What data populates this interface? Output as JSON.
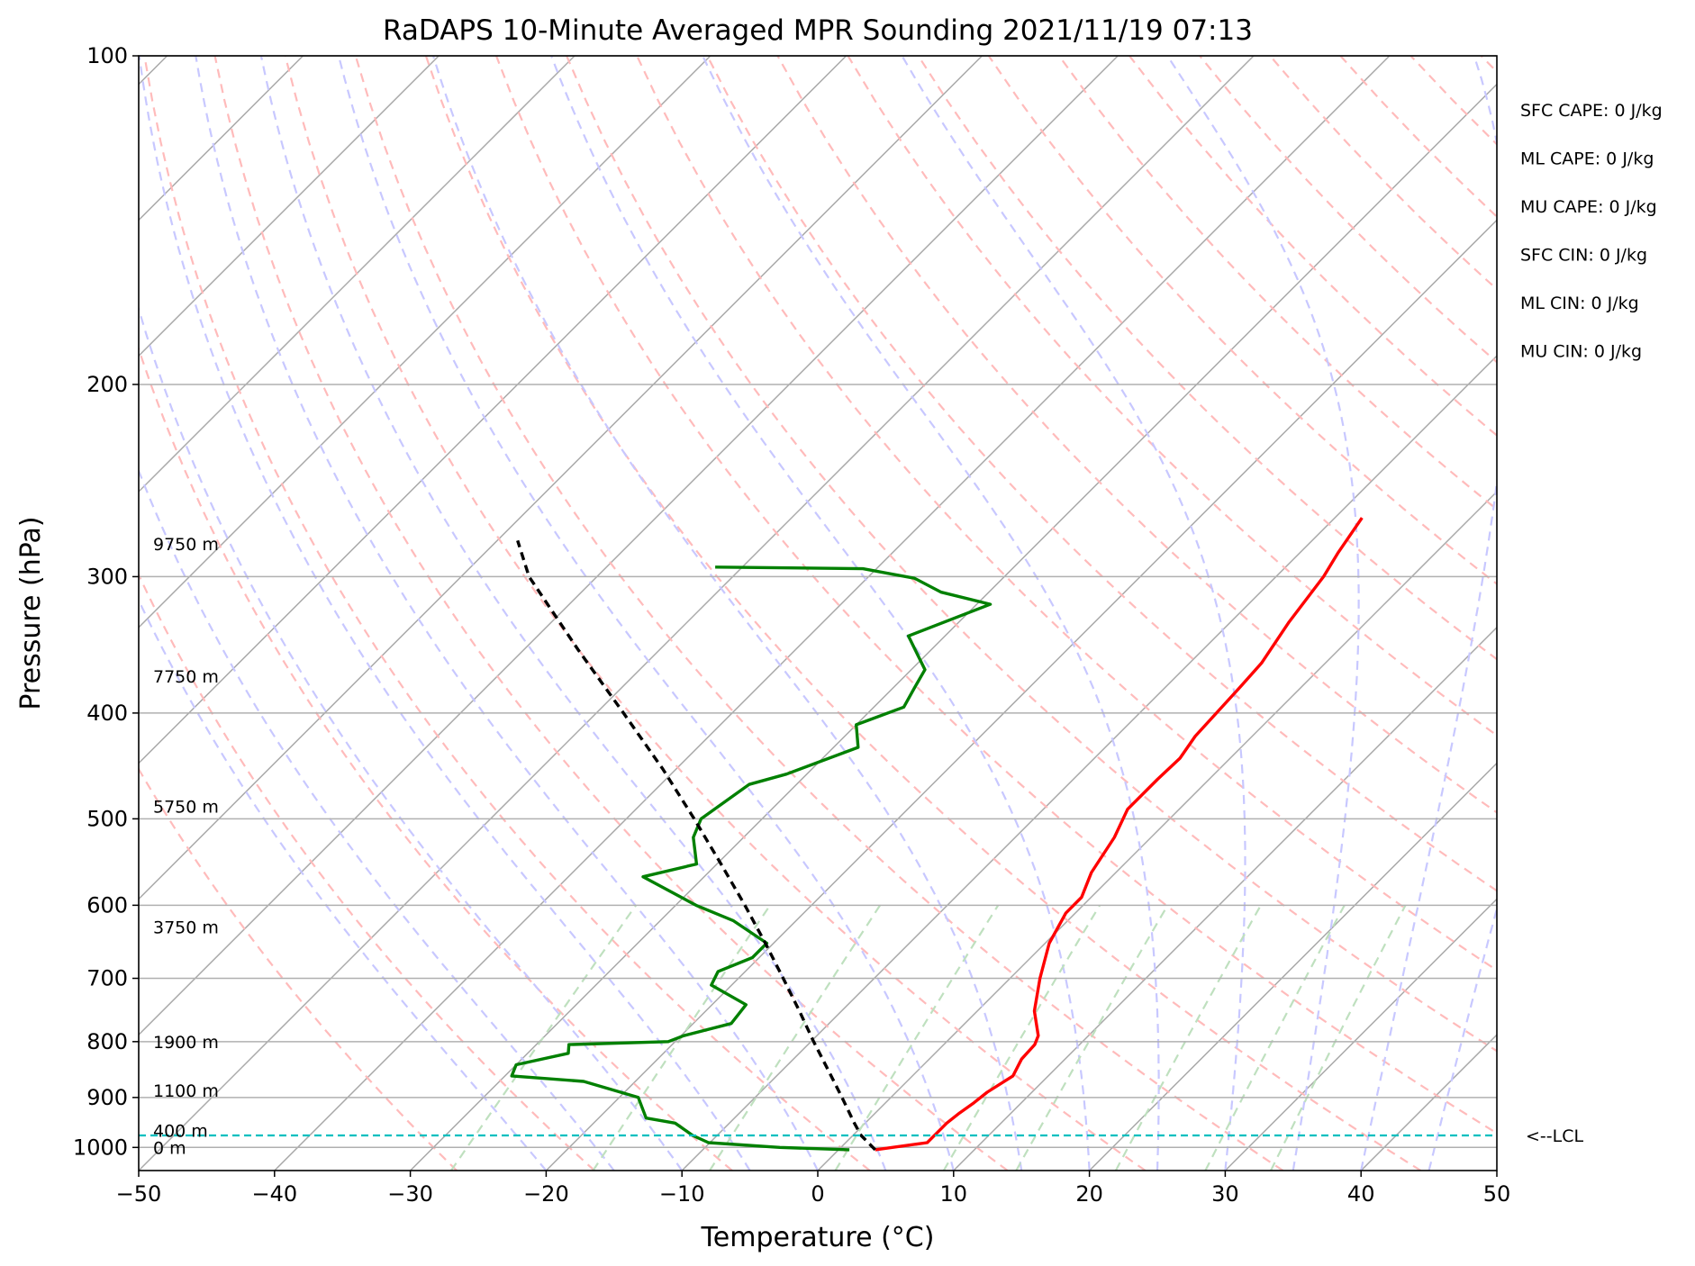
{
  "chart_data": {
    "type": "line",
    "title": "RaDAPS 10-Minute Averaged MPR Sounding 2021/11/19 07:13",
    "xlabel": "Temperature (°C)",
    "ylabel": "Pressure (hPa)",
    "xlim": [
      -50,
      50
    ],
    "ylim": [
      1050,
      100
    ],
    "yscale": "log",
    "skew": true,
    "xticks": [
      -50,
      -40,
      -30,
      -20,
      -10,
      0,
      10,
      20,
      30,
      40,
      50
    ],
    "xtick_labels": [
      "−50",
      "−40",
      "−30",
      "−20",
      "−10",
      "0",
      "10",
      "20",
      "30",
      "40",
      "50"
    ],
    "yticks": [
      100,
      200,
      300,
      400,
      500,
      600,
      700,
      800,
      900,
      1000
    ],
    "ytick_labels": [
      "100",
      "200",
      "300",
      "400",
      "500",
      "600",
      "700",
      "800",
      "900",
      "1000"
    ],
    "grid": true,
    "series": [
      {
        "id": "temperature",
        "color": "#ff0000",
        "style": "solid",
        "points": [
          [
            1005,
            2.7
          ],
          [
            990,
            6.0
          ],
          [
            970,
            6.0
          ],
          [
            950,
            6.0
          ],
          [
            930,
            6.2
          ],
          [
            910,
            6.5
          ],
          [
            890,
            6.7
          ],
          [
            860,
            7.4
          ],
          [
            830,
            6.8
          ],
          [
            805,
            6.7
          ],
          [
            790,
            6.3
          ],
          [
            750,
            4.2
          ],
          [
            700,
            2.2
          ],
          [
            650,
            0.3
          ],
          [
            610,
            -0.7
          ],
          [
            590,
            -0.7
          ],
          [
            560,
            -1.8
          ],
          [
            520,
            -2.7
          ],
          [
            490,
            -3.8
          ],
          [
            460,
            -3.8
          ],
          [
            440,
            -3.7
          ],
          [
            420,
            -4.2
          ],
          [
            380,
            -4.5
          ],
          [
            360,
            -4.7
          ],
          [
            330,
            -5.7
          ],
          [
            300,
            -6.5
          ],
          [
            285,
            -7.2
          ],
          [
            265,
            -8.0
          ]
        ]
      },
      {
        "id": "dewpoint",
        "color": "#008000",
        "style": "solid",
        "points": [
          [
            1005,
            0.8
          ],
          [
            1000,
            -4.5
          ],
          [
            990,
            -10.1
          ],
          [
            975,
            -11.8
          ],
          [
            950,
            -14.0
          ],
          [
            940,
            -16.5
          ],
          [
            900,
            -18.6
          ],
          [
            870,
            -23.8
          ],
          [
            860,
            -29.5
          ],
          [
            840,
            -30.0
          ],
          [
            820,
            -27.0
          ],
          [
            805,
            -27.6
          ],
          [
            800,
            -20.5
          ],
          [
            790,
            -19.8
          ],
          [
            770,
            -17.2
          ],
          [
            740,
            -17.5
          ],
          [
            710,
            -21.5
          ],
          [
            690,
            -22.0
          ],
          [
            670,
            -20.5
          ],
          [
            650,
            -20.5
          ],
          [
            620,
            -24.6
          ],
          [
            600,
            -28.5
          ],
          [
            565,
            -34.5
          ],
          [
            550,
            -31.5
          ],
          [
            520,
            -33.7
          ],
          [
            500,
            -34.5
          ],
          [
            465,
            -33.5
          ],
          [
            455,
            -31.5
          ],
          [
            430,
            -28.2
          ],
          [
            410,
            -30.0
          ],
          [
            395,
            -27.8
          ],
          [
            380,
            -28.4
          ],
          [
            365,
            -29.0
          ],
          [
            340,
            -32.7
          ],
          [
            318,
            -29.0
          ],
          [
            310,
            -33.5
          ],
          [
            301,
            -36.5
          ],
          [
            295,
            -41.0
          ],
          [
            294,
            -52.0
          ]
        ]
      },
      {
        "id": "parcel",
        "color": "#000000",
        "style": "dashed",
        "points": [
          [
            1005,
            2.7
          ],
          [
            975,
            0.6
          ],
          [
            950,
            -0.8
          ],
          [
            900,
            -3.6
          ],
          [
            850,
            -6.6
          ],
          [
            800,
            -9.8
          ],
          [
            750,
            -13.1
          ],
          [
            700,
            -16.7
          ],
          [
            650,
            -20.6
          ],
          [
            600,
            -24.9
          ],
          [
            550,
            -29.7
          ],
          [
            500,
            -35.0
          ],
          [
            450,
            -41.0
          ],
          [
            400,
            -48.0
          ],
          [
            350,
            -56.0
          ],
          [
            300,
            -65.0
          ],
          [
            278,
            -68.5
          ]
        ]
      }
    ],
    "lcl": {
      "pressure": 975,
      "label": "<--LCL",
      "color": "#00bfbf"
    },
    "height_labels": [
      {
        "text": "9750 m",
        "pressure": 280
      },
      {
        "text": "7750 m",
        "pressure": 370
      },
      {
        "text": "5750 m",
        "pressure": 487
      },
      {
        "text": "3750 m",
        "pressure": 628
      },
      {
        "text": "1900 m",
        "pressure": 800
      },
      {
        "text": "1100 m",
        "pressure": 887
      },
      {
        "text": "400 m",
        "pressure": 965
      },
      {
        "text": "0 m",
        "pressure": 1000
      }
    ],
    "background_lines": {
      "isotherms_color": "#a9a9a9",
      "dry_adiabats_color": "#ffbbbb",
      "moist_adiabats_color": "#c8c8ff",
      "mixing_ratio_color": "#bfe0bf"
    },
    "stats": [
      "SFC CAPE: 0 J/kg",
      "ML CAPE: 0 J/kg",
      "MU CAPE: 0 J/kg",
      "SFC CIN: 0 J/kg",
      "ML CIN: 0 J/kg",
      "MU CIN: 0 J/kg"
    ]
  }
}
